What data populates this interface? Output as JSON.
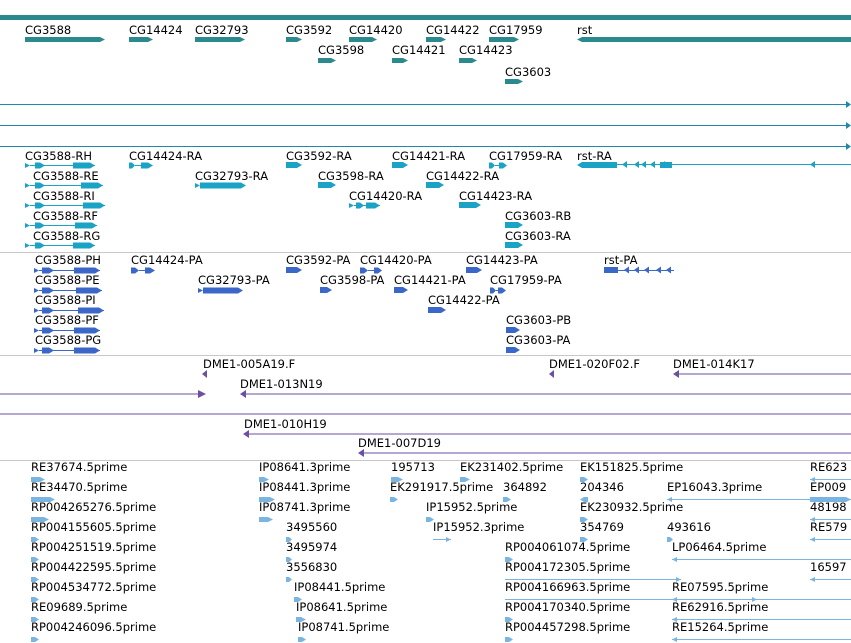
{
  "colors": {
    "gene": "#2b8a8e",
    "transcript": "#1aa3c4",
    "protein": "#3a67c8",
    "clone": "#6a4fa3",
    "est": "#7ab4e0",
    "divider": "#c8c8c8",
    "scaffold": "#1f8aa8"
  },
  "tracks": {
    "genes": {
      "items": [
        {
          "label": "CG3588",
          "strand": "+"
        },
        {
          "label": "CG14424",
          "strand": "+"
        },
        {
          "label": "CG32793",
          "strand": "+"
        },
        {
          "label": "CG3592",
          "strand": "+"
        },
        {
          "label": "CG14420",
          "strand": "+"
        },
        {
          "label": "CG14422",
          "strand": "+"
        },
        {
          "label": "CG17959",
          "strand": "+"
        },
        {
          "label": "rst",
          "strand": "+"
        },
        {
          "label": "CG3598",
          "strand": "+"
        },
        {
          "label": "CG14421",
          "strand": "+"
        },
        {
          "label": "CG14423",
          "strand": "+"
        },
        {
          "label": "CG3603",
          "strand": "+"
        }
      ]
    },
    "transcripts": {
      "items": [
        {
          "label": "CG3588-RH"
        },
        {
          "label": "CG14424-RA"
        },
        {
          "label": "CG3592-RA"
        },
        {
          "label": "CG14421-RA"
        },
        {
          "label": "CG17959-RA"
        },
        {
          "label": "rst-RA"
        },
        {
          "label": "CG3588-RE"
        },
        {
          "label": "CG32793-RA"
        },
        {
          "label": "CG3598-RA"
        },
        {
          "label": "CG14422-RA"
        },
        {
          "label": "CG3588-RI"
        },
        {
          "label": "CG14420-RA"
        },
        {
          "label": "CG14423-RA"
        },
        {
          "label": "CG3588-RF"
        },
        {
          "label": "CG3603-RB"
        },
        {
          "label": "CG3588-RG"
        },
        {
          "label": "CG3603-RA"
        }
      ]
    },
    "proteins": {
      "items": [
        {
          "label": "CG3588-PH"
        },
        {
          "label": "CG14424-PA"
        },
        {
          "label": "CG3592-PA"
        },
        {
          "label": "CG14420-PA"
        },
        {
          "label": "CG14423-PA"
        },
        {
          "label": "rst-PA"
        },
        {
          "label": "CG3588-PE"
        },
        {
          "label": "CG32793-PA"
        },
        {
          "label": "CG3598-PA"
        },
        {
          "label": "CG14421-PA"
        },
        {
          "label": "CG17959-PA"
        },
        {
          "label": "CG3588-PI"
        },
        {
          "label": "CG14422-PA"
        },
        {
          "label": "CG3588-PF"
        },
        {
          "label": "CG3603-PB"
        },
        {
          "label": "CG3588-PG"
        },
        {
          "label": "CG3603-PA"
        }
      ]
    },
    "clones": {
      "items": [
        {
          "label": "DME1-005A19.F"
        },
        {
          "label": "DME1-020F02.F"
        },
        {
          "label": "DME1-014K17"
        },
        {
          "label": "DME1-013N19"
        },
        {
          "label": "DME1-010H19"
        },
        {
          "label": "DME1-007D19"
        }
      ]
    },
    "ests": {
      "items": [
        {
          "label": "RE37674.5prime"
        },
        {
          "label": "IP08641.3prime"
        },
        {
          "label": "195713"
        },
        {
          "label": "EK231402.5prime"
        },
        {
          "label": "EK151825.5prime"
        },
        {
          "label": "RE623"
        },
        {
          "label": "RE34470.5prime"
        },
        {
          "label": "IP08441.3prime"
        },
        {
          "label": "EK291917.5prime"
        },
        {
          "label": "364892"
        },
        {
          "label": "204346"
        },
        {
          "label": "EP16043.3prime"
        },
        {
          "label": "EP009"
        },
        {
          "label": "RP004265276.5prime"
        },
        {
          "label": "IP08741.3prime"
        },
        {
          "label": "IP15952.5prime"
        },
        {
          "label": "EK230932.5prime"
        },
        {
          "label": "48198"
        },
        {
          "label": "RP004155605.5prime"
        },
        {
          "label": "3495560"
        },
        {
          "label": "IP15952.3prime"
        },
        {
          "label": "354769"
        },
        {
          "label": "493616"
        },
        {
          "label": "RE579"
        },
        {
          "label": "RP004251519.5prime"
        },
        {
          "label": "3495974"
        },
        {
          "label": "RP004061074.5prime"
        },
        {
          "label": "LP06464.5prime"
        },
        {
          "label": "RP004422595.5prime"
        },
        {
          "label": "3556830"
        },
        {
          "label": "RP004172305.5prime"
        },
        {
          "label": "16597"
        },
        {
          "label": "RP004534772.5prime"
        },
        {
          "label": "IP08441.5prime"
        },
        {
          "label": "RP004166963.5prime"
        },
        {
          "label": "RE07595.5prime"
        },
        {
          "label": "RE09689.5prime"
        },
        {
          "label": "IP08641.5prime"
        },
        {
          "label": "RP004170340.5prime"
        },
        {
          "label": "RE62916.5prime"
        },
        {
          "label": "RP004246096.5prime"
        },
        {
          "label": "IP08741.5prime"
        },
        {
          "label": "RP004457298.5prime"
        },
        {
          "label": "RE15264.5prime"
        }
      ]
    }
  }
}
